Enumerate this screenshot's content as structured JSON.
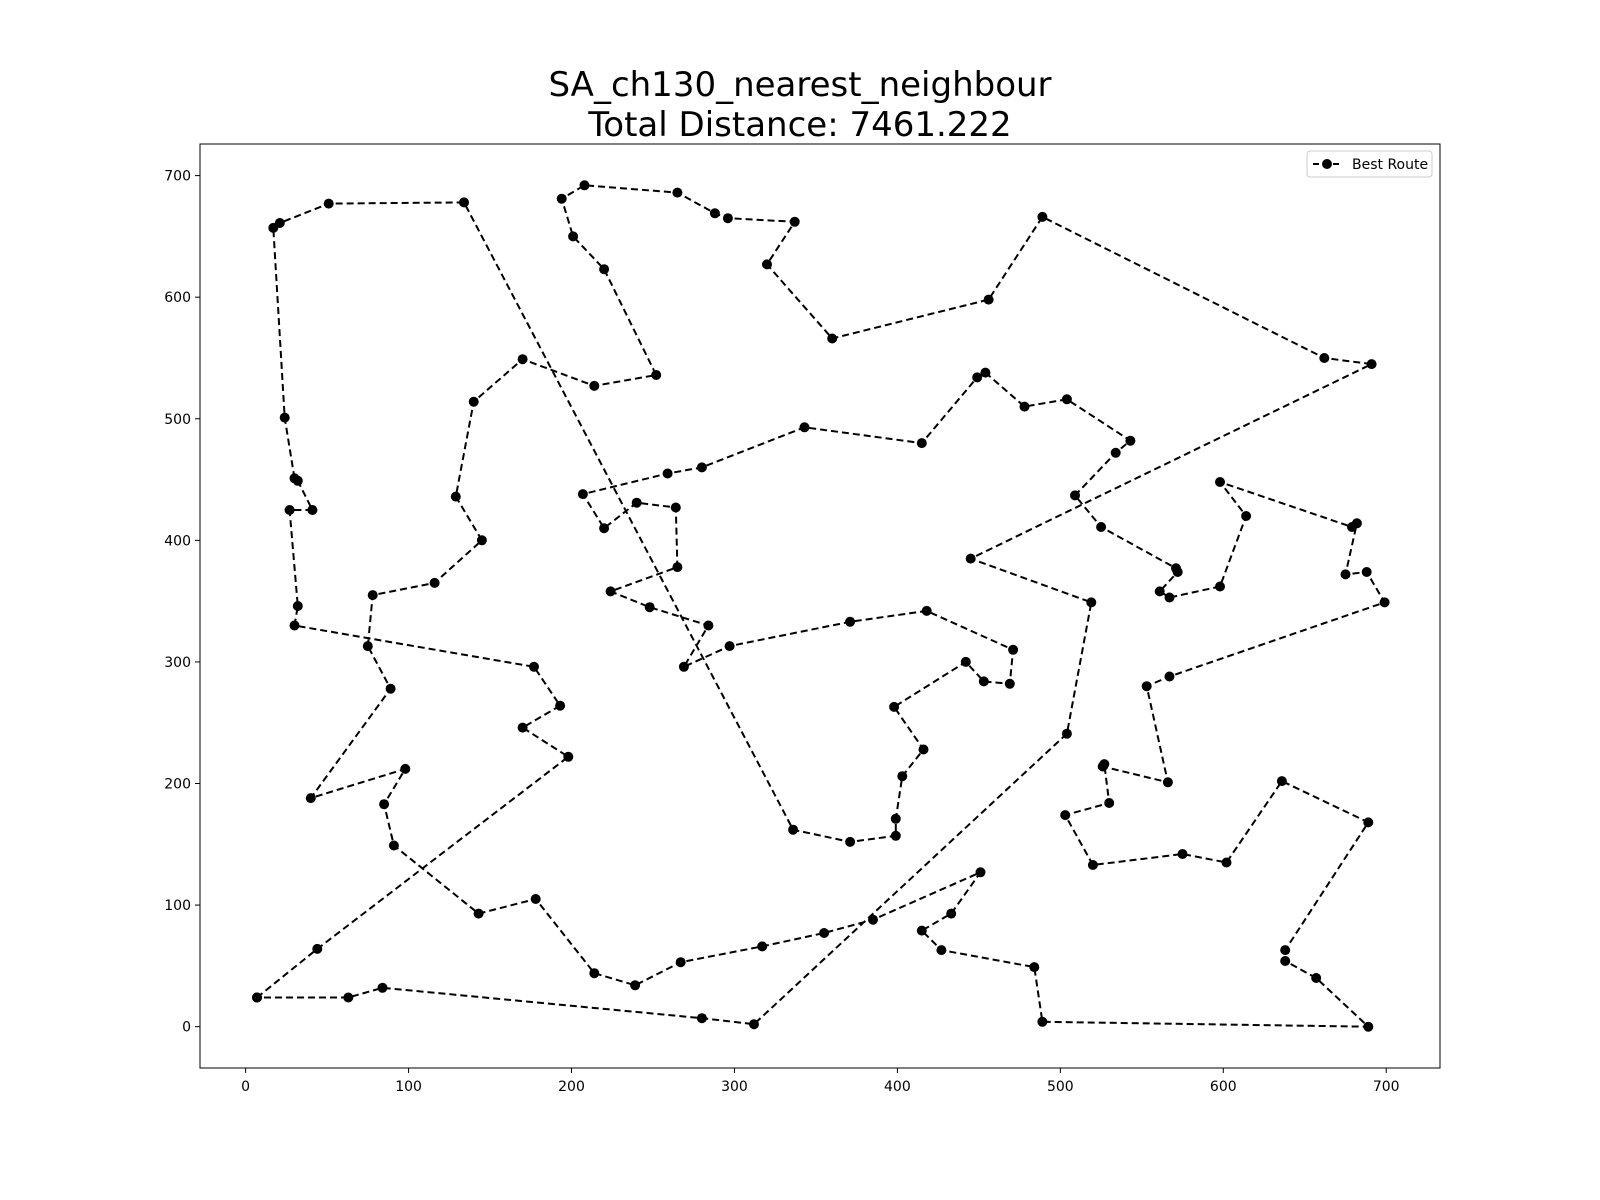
{
  "chart_data": {
    "type": "line",
    "title_lines": [
      "SA_ch130_nearest_neighbour",
      "Total Distance: 7461.222"
    ],
    "xlabel": "",
    "ylabel": "",
    "xlim": [
      -28,
      733
    ],
    "ylim": [
      -34,
      726
    ],
    "xticks": [
      0,
      100,
      200,
      300,
      400,
      500,
      600,
      700
    ],
    "yticks": [
      0,
      100,
      200,
      300,
      400,
      500,
      600,
      700
    ],
    "grid": false,
    "legend_position": "top-right",
    "series": [
      {
        "name": "Best Route",
        "color": "#000000",
        "line_style": "dashed",
        "marker": "circle",
        "points": [
          [
            7,
            24
          ],
          [
            44,
            64
          ],
          [
            198,
            222
          ],
          [
            170,
            246
          ],
          [
            193,
            264
          ],
          [
            177,
            296
          ],
          [
            30,
            330
          ],
          [
            32,
            346
          ],
          [
            27,
            425
          ],
          [
            41,
            425
          ],
          [
            32,
            449
          ],
          [
            30,
            451
          ],
          [
            24,
            501
          ],
          [
            17,
            657
          ],
          [
            21,
            661
          ],
          [
            51,
            677
          ],
          [
            134,
            678
          ],
          [
            336,
            162
          ],
          [
            371,
            152
          ],
          [
            399,
            157
          ],
          [
            399,
            171
          ],
          [
            403,
            206
          ],
          [
            416,
            228
          ],
          [
            398,
            263
          ],
          [
            442,
            300
          ],
          [
            453,
            284
          ],
          [
            469,
            282
          ],
          [
            471,
            310
          ],
          [
            418,
            342
          ],
          [
            371,
            333
          ],
          [
            297,
            313
          ],
          [
            269,
            296
          ],
          [
            284,
            330
          ],
          [
            248,
            345
          ],
          [
            224,
            358
          ],
          [
            265,
            378
          ],
          [
            264,
            427
          ],
          [
            240,
            431
          ],
          [
            220,
            410
          ],
          [
            207,
            438
          ],
          [
            259,
            455
          ],
          [
            280,
            460
          ],
          [
            343,
            493
          ],
          [
            415,
            480
          ],
          [
            449,
            534
          ],
          [
            454,
            538
          ],
          [
            478,
            510
          ],
          [
            504,
            516
          ],
          [
            543,
            482
          ],
          [
            534,
            472
          ],
          [
            509,
            437
          ],
          [
            525,
            411
          ],
          [
            571,
            377
          ],
          [
            572,
            374
          ],
          [
            561,
            358
          ],
          [
            567,
            353
          ],
          [
            598,
            362
          ],
          [
            614,
            420
          ],
          [
            598,
            448
          ],
          [
            679,
            411
          ],
          [
            682,
            414
          ],
          [
            675,
            372
          ],
          [
            688,
            374
          ],
          [
            699,
            349
          ],
          [
            567,
            288
          ],
          [
            553,
            280
          ],
          [
            566,
            201
          ],
          [
            526,
            214
          ],
          [
            527,
            216
          ],
          [
            530,
            184
          ],
          [
            503,
            174
          ],
          [
            520,
            133
          ],
          [
            575,
            142
          ],
          [
            602,
            135
          ],
          [
            636,
            202
          ],
          [
            689,
            168
          ],
          [
            638,
            63
          ],
          [
            638,
            54
          ],
          [
            657,
            40
          ],
          [
            689,
            0
          ],
          [
            489,
            4
          ],
          [
            484,
            49
          ],
          [
            427,
            63
          ],
          [
            415,
            79
          ],
          [
            433,
            93
          ],
          [
            451,
            127
          ],
          [
            385,
            88
          ],
          [
            355,
            77
          ],
          [
            317,
            66
          ],
          [
            267,
            53
          ],
          [
            239,
            34
          ],
          [
            214,
            44
          ],
          [
            178,
            105
          ],
          [
            143,
            93
          ],
          [
            91,
            149
          ],
          [
            85,
            183
          ],
          [
            98,
            212
          ],
          [
            40,
            188
          ],
          [
            89,
            278
          ],
          [
            75,
            313
          ],
          [
            78,
            355
          ],
          [
            116,
            365
          ],
          [
            145,
            400
          ],
          [
            129,
            436
          ],
          [
            140,
            514
          ],
          [
            170,
            549
          ],
          [
            214,
            527
          ],
          [
            252,
            536
          ],
          [
            220,
            623
          ],
          [
            201,
            650
          ],
          [
            194,
            681
          ],
          [
            208,
            692
          ],
          [
            265,
            686
          ],
          [
            288,
            669
          ],
          [
            296,
            665
          ],
          [
            337,
            662
          ],
          [
            320,
            627
          ],
          [
            360,
            566
          ],
          [
            456,
            598
          ],
          [
            489,
            666
          ],
          [
            662,
            550
          ],
          [
            691,
            545
          ],
          [
            445,
            385
          ],
          [
            519,
            349
          ],
          [
            504,
            241
          ],
          [
            312,
            2
          ],
          [
            280,
            7
          ],
          [
            84,
            32
          ],
          [
            63,
            24
          ],
          [
            7,
            24
          ]
        ]
      }
    ]
  }
}
